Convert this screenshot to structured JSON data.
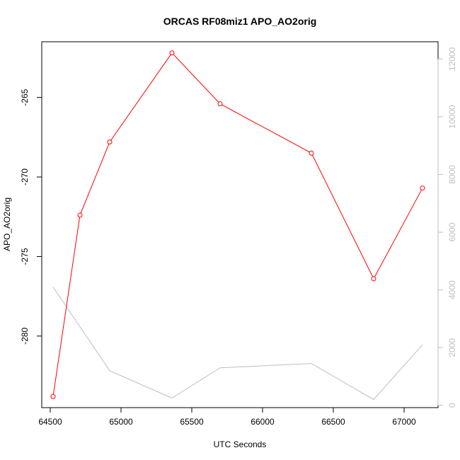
{
  "chart_data": {
    "type": "line",
    "title": "ORCAS RF08miz1 APO_AO2orig",
    "xlabel": "UTC Seconds",
    "ylabel": "APO_AO2orig",
    "xlim": [
      64440,
      67240
    ],
    "ylim": [
      -284.5,
      -261.5
    ],
    "y2lim": [
      -80,
      12600
    ],
    "x_ticks": [
      64500,
      65000,
      65500,
      66000,
      66500,
      67000
    ],
    "y_ticks": [
      -280,
      -275,
      -270,
      -265
    ],
    "y2_ticks": [
      0,
      2000,
      4000,
      6000,
      8000,
      10000,
      12000
    ],
    "grid": false,
    "legend": "none",
    "series": [
      {
        "color": "#ff0000",
        "axis": "left",
        "marker": "circle-open",
        "x": [
          64520,
          64710,
          64920,
          65360,
          65700,
          66345,
          66785,
          67130
        ],
        "y": [
          -283.8,
          -272.4,
          -267.8,
          -262.2,
          -265.4,
          -268.5,
          -276.4,
          -270.7
        ]
      },
      {
        "color": "#bebebe",
        "axis": "right",
        "marker": "none",
        "x": [
          64520,
          64920,
          65360,
          65700,
          66345,
          66785,
          67130
        ],
        "y": [
          4100,
          1200,
          250,
          1300,
          1450,
          200,
          2100
        ]
      }
    ]
  }
}
